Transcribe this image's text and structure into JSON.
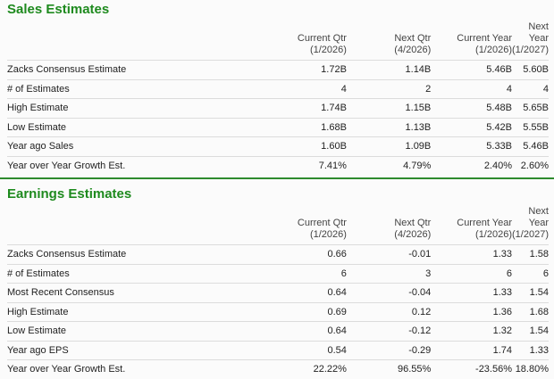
{
  "sales": {
    "title": "Sales Estimates",
    "columns": [
      {
        "name": "Current Qtr",
        "period": "(1/2026)"
      },
      {
        "name": "Next Qtr",
        "period": "(4/2026)"
      },
      {
        "name": "Current Year",
        "period": "(1/2026)"
      },
      {
        "name": "Next Year",
        "period": "(1/2027)"
      }
    ],
    "rows": [
      {
        "label": "Zacks Consensus Estimate",
        "values": [
          "1.72B",
          "1.14B",
          "5.46B",
          "5.60B"
        ]
      },
      {
        "label": "# of Estimates",
        "values": [
          "4",
          "2",
          "4",
          "4"
        ]
      },
      {
        "label": "High Estimate",
        "values": [
          "1.74B",
          "1.15B",
          "5.48B",
          "5.65B"
        ]
      },
      {
        "label": "Low Estimate",
        "values": [
          "1.68B",
          "1.13B",
          "5.42B",
          "5.55B"
        ]
      },
      {
        "label": "Year ago Sales",
        "values": [
          "1.60B",
          "1.09B",
          "5.33B",
          "5.46B"
        ]
      },
      {
        "label": "Year over Year Growth Est.",
        "values": [
          "7.41%",
          "4.79%",
          "2.40%",
          "2.60%"
        ]
      }
    ]
  },
  "earnings": {
    "title": "Earnings Estimates",
    "columns": [
      {
        "name": "Current Qtr",
        "period": "(1/2026)"
      },
      {
        "name": "Next Qtr",
        "period": "(4/2026)"
      },
      {
        "name": "Current Year",
        "period": "(1/2026)"
      },
      {
        "name": "Next Year",
        "period": "(1/2027)"
      }
    ],
    "rows": [
      {
        "label": "Zacks Consensus Estimate",
        "values": [
          "0.66",
          "-0.01",
          "1.33",
          "1.58"
        ]
      },
      {
        "label": "# of Estimates",
        "values": [
          "6",
          "3",
          "6",
          "6"
        ]
      },
      {
        "label": "Most Recent Consensus",
        "values": [
          "0.64",
          "-0.04",
          "1.33",
          "1.54"
        ]
      },
      {
        "label": "High Estimate",
        "values": [
          "0.69",
          "0.12",
          "1.36",
          "1.68"
        ]
      },
      {
        "label": "Low Estimate",
        "values": [
          "0.64",
          "-0.12",
          "1.32",
          "1.54"
        ]
      },
      {
        "label": "Year ago EPS",
        "values": [
          "0.54",
          "-0.29",
          "1.74",
          "1.33"
        ]
      },
      {
        "label": "Year over Year Growth Est.",
        "values": [
          "22.22%",
          "96.55%",
          "-23.56%",
          "18.80%"
        ]
      }
    ]
  },
  "colors": {
    "title": "#1e8a1e",
    "divider": "#2e8b2e"
  }
}
